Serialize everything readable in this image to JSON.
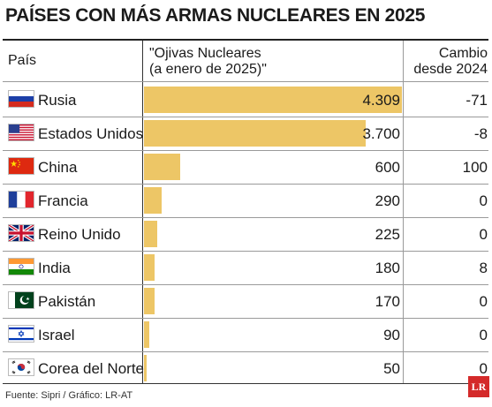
{
  "title": "PAÍSES CON MÁS ARMAS NUCLEARES EN 2025",
  "headers": {
    "country": "País",
    "warheads_line1": "\"Ojivas Nucleares",
    "warheads_line2": "(a enero de 2025)\"",
    "change_line1": "Cambio",
    "change_line2": "desde 2024"
  },
  "chart_data": {
    "type": "bar",
    "orientation": "horizontal",
    "title": "PAÍSES CON MÁS ARMAS NUCLEARES EN 2025",
    "categories": [
      "Rusia",
      "Estados Unidos",
      "China",
      "Francia",
      "Reino Unido",
      "India",
      "Pakistán",
      "Israel",
      "Corea del Norte"
    ],
    "values": [
      4309,
      3700,
      600,
      290,
      225,
      180,
      170,
      90,
      50
    ],
    "value_labels": [
      "4.309",
      "3.700",
      "600",
      "290",
      "225",
      "180",
      "170",
      "90",
      "50"
    ],
    "change_since_2024": [
      "-71",
      "-8",
      "100",
      "0",
      "0",
      "8",
      "0",
      "0",
      "0"
    ],
    "xlim": [
      0,
      4309
    ],
    "bar_color": "#edc666"
  },
  "rows": [
    {
      "flag": "russia-flag-icon"
    },
    {
      "flag": "usa-flag-icon"
    },
    {
      "flag": "china-flag-icon"
    },
    {
      "flag": "france-flag-icon"
    },
    {
      "flag": "uk-flag-icon"
    },
    {
      "flag": "india-flag-icon"
    },
    {
      "flag": "pakistan-flag-icon"
    },
    {
      "flag": "israel-flag-icon"
    },
    {
      "flag": "south-korea-flag-icon"
    }
  ],
  "source": "Fuente: Sipri / Gráfico: LR-AT",
  "logo": "LR"
}
